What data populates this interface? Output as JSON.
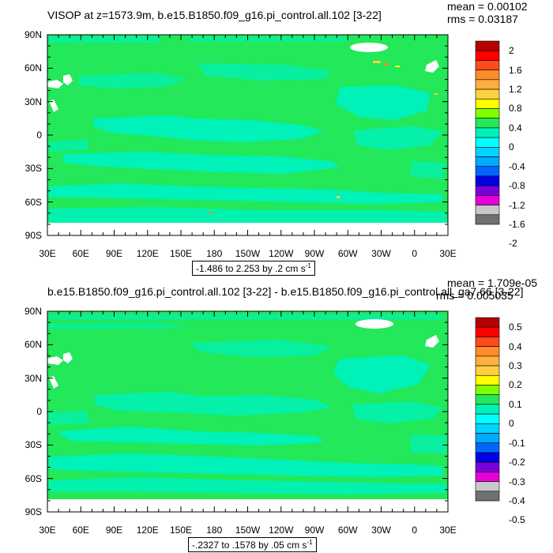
{
  "chart_data": [
    {
      "type": "heatmap",
      "title": "VISOP at z=1573.9m, b.e15.B1850.f09_g16.pi_control.all.102 [3-22]",
      "stats": {
        "mean": "mean = 0.00102",
        "rms": "rms = 0.03187"
      },
      "y_ticks": [
        "90N",
        "60N",
        "30N",
        "0",
        "30S",
        "60S",
        "90S"
      ],
      "x_ticks": [
        "30E",
        "60E",
        "90E",
        "120E",
        "150E",
        "180",
        "150W",
        "120W",
        "90W",
        "60W",
        "30W",
        "0",
        "30E"
      ],
      "colorbar_labels": [
        "2",
        "1.6",
        "1.2",
        "0.8",
        "0.4",
        "0",
        "-0.4",
        "-0.8",
        "-1.2",
        "-1.6",
        "-2"
      ],
      "colorbar_colors": [
        "#b40000",
        "#ff0000",
        "#ff4a1e",
        "#ff8c28",
        "#ffae40",
        "#ffd040",
        "#ffff00",
        "#80ff00",
        "#22e85a",
        "#00f2b8",
        "#00ffff",
        "#00d4ff",
        "#00aaff",
        "#0066ff",
        "#0000e6",
        "#7a00d9",
        "#e600d9",
        "#c8c8c8",
        "#707070"
      ],
      "range_text": "-1.486 to 2.253 by .2 cm s",
      "range_superscript": "-1"
    },
    {
      "type": "heatmap",
      "title": "b.e15.B1850.f09_g16.pi_control.all.102 [3-22] - b.e15.B1850.f09_g16.pi_control.all_ga7.66 [3-22]",
      "stats": {
        "mean": "mean = 1.709e-05",
        "rms": "rms = 0.005035"
      },
      "y_ticks": [
        "90N",
        "60N",
        "30N",
        "0",
        "30S",
        "60S",
        "90S"
      ],
      "x_ticks": [
        "30E",
        "60E",
        "90E",
        "120E",
        "150E",
        "180",
        "150W",
        "120W",
        "90W",
        "60W",
        "30W",
        "0",
        "30E"
      ],
      "colorbar_labels": [
        "0.5",
        "0.4",
        "0.3",
        "0.2",
        "0.1",
        "0",
        "-0.1",
        "-0.2",
        "-0.3",
        "-0.4",
        "-0.5"
      ],
      "colorbar_colors": [
        "#b40000",
        "#ff0000",
        "#ff4a1e",
        "#ff8c28",
        "#ffae40",
        "#ffd040",
        "#ffff00",
        "#80ff00",
        "#22e85a",
        "#00f2b8",
        "#00ffff",
        "#00d4ff",
        "#00aaff",
        "#0066ff",
        "#0000e6",
        "#7a00d9",
        "#e600d9",
        "#c8c8c8",
        "#707070"
      ],
      "range_text": "-.2327 to .1578 by .05 cm s",
      "range_superscript": "-1"
    }
  ]
}
